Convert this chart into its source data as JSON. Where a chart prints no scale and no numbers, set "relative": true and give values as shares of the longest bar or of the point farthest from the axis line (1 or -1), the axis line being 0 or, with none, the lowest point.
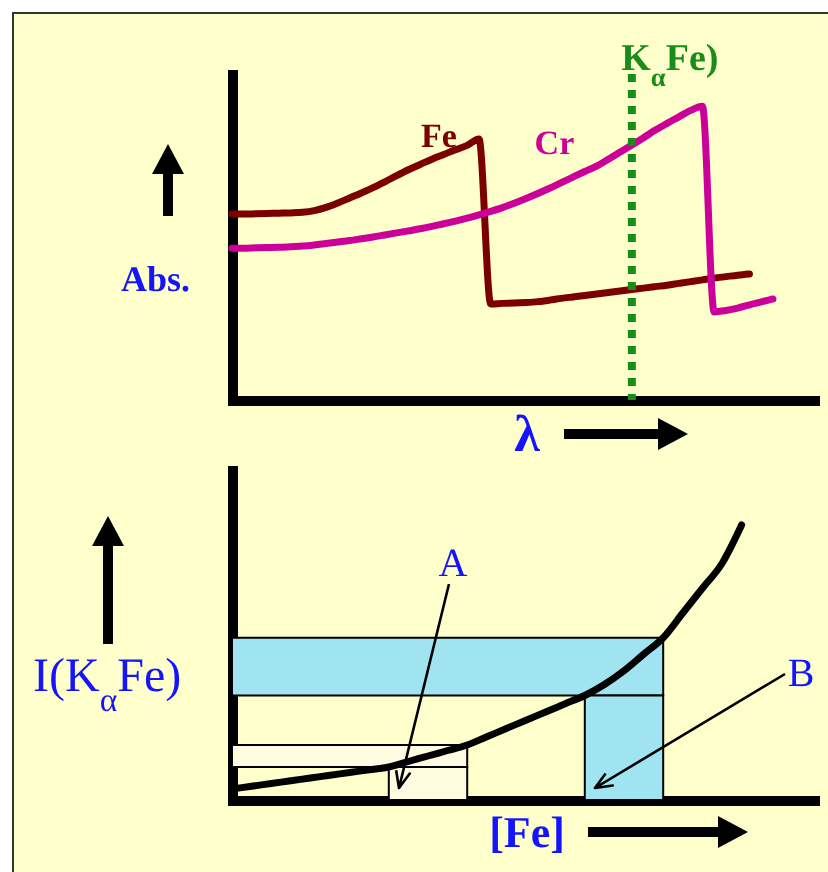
{
  "chart_data": [
    {
      "type": "line",
      "relative": true,
      "xlabel": "λ",
      "ylabel": "Abs.",
      "categories": [
        null,
        null,
        null,
        null,
        null,
        null,
        null,
        null,
        null,
        null,
        null,
        null,
        null,
        null,
        null,
        null,
        null,
        null,
        null,
        null,
        null,
        null,
        null,
        null,
        null,
        null,
        null,
        null,
        null,
        null,
        null,
        null,
        null,
        null,
        null,
        null,
        null,
        null,
        null,
        null,
        null,
        null,
        null,
        null,
        null,
        null,
        null,
        null,
        null,
        null,
        null
      ],
      "series": [
        {
          "name": "Fe",
          "color": "#7b0000",
          "values": [
            0.633,
            0.633,
            0.634,
            0.635,
            0.636,
            0.637,
            0.639,
            0.645,
            0.656,
            0.671,
            0.688,
            0.705,
            0.723,
            0.743,
            0.764,
            0.784,
            0.802,
            0.82,
            0.836,
            0.852,
            0.867,
            0.889,
            0.327,
            0.329,
            0.33,
            0.332,
            0.335,
            0.34,
            0.346,
            0.351,
            0.356,
            0.361,
            0.366,
            0.371,
            0.376,
            0.381,
            0.386,
            0.391,
            0.397,
            0.403,
            0.409,
            0.415,
            0.42,
            0.425,
            0.429,
            null,
            null,
            null,
            null,
            null,
            null
          ]
        },
        {
          "name": "Cr",
          "color": "#cc0099",
          "values": [
            0.517,
            0.517,
            0.518,
            0.519,
            0.52,
            0.522,
            0.524,
            0.528,
            0.533,
            0.538,
            0.543,
            0.549,
            0.555,
            0.562,
            0.569,
            0.576,
            0.583,
            0.591,
            0.6,
            0.609,
            0.619,
            0.63,
            0.642,
            0.655,
            0.67,
            0.686,
            0.703,
            0.721,
            0.74,
            0.759,
            0.778,
            0.796,
            0.82,
            0.844,
            0.868,
            0.893,
            0.919,
            0.942,
            0.964,
            0.986,
            1,
            0.3,
            0.305,
            0.313,
            0.324,
            0.334,
            0.344,
            null,
            null,
            null,
            null
          ]
        }
      ],
      "annotations": [
        "K$_{α}$Fe)"
      ]
    },
    {
      "type": "line",
      "relative": true,
      "xlabel": "[Fe]",
      "ylabel": "I(K$_{α}$Fe)",
      "categories": [
        null,
        null,
        null,
        null,
        null,
        null,
        null,
        null,
        null,
        null,
        null,
        null,
        null,
        null,
        null,
        null,
        null,
        null,
        null,
        null,
        null,
        null,
        null,
        null,
        null,
        null,
        null,
        null,
        null,
        null,
        null
      ],
      "series": [
        {
          "color": "#000000",
          "values": [
            0.04,
            0.05,
            0.06,
            0.07,
            0.08,
            0.09,
            0.1,
            0.11,
            0.12,
            0.14,
            0.16,
            0.18,
            0.2,
            0.23,
            0.26,
            0.29,
            0.32,
            0.35,
            0.38,
            0.42,
            0.47,
            0.53,
            0.59,
            0.68,
            0.77,
            0.86,
            1,
            null,
            null,
            null,
            null
          ]
        }
      ],
      "bands": [
        {
          "axis": "y",
          "from": 0.12,
          "to": 0.2,
          "color": "#fffbe0"
        },
        {
          "axis": "y",
          "from": 0.38,
          "to": 0.59,
          "color": "#a0e4f2"
        }
      ],
      "annotations": [
        "A",
        "B"
      ]
    }
  ]
}
